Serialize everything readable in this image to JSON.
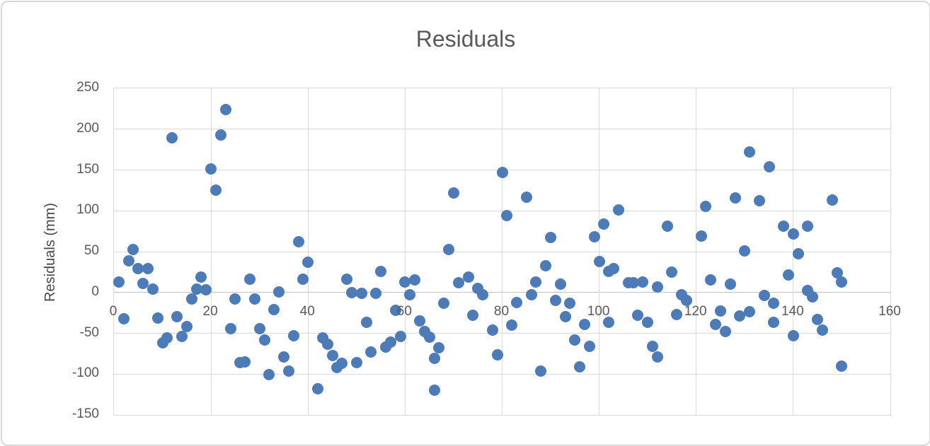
{
  "chart": {
    "title": "Residuals",
    "y_axis_title": "Residuals (mm)"
  },
  "chart_data": {
    "type": "scatter",
    "title": "Residuals",
    "xlabel": "",
    "ylabel": "Residuals (mm)",
    "xlim": [
      0,
      160
    ],
    "ylim": [
      -150,
      250
    ],
    "x_ticks": [
      0,
      20,
      40,
      60,
      80,
      100,
      120,
      140,
      160
    ],
    "y_ticks": [
      250,
      200,
      150,
      100,
      50,
      0,
      -50,
      -100,
      -150
    ],
    "grid": true,
    "legend": "none",
    "marker_color": "#4c7bb8",
    "gridline_color": "#d9d9d9",
    "text_color": "#595959",
    "points": [
      [
        1,
        13
      ],
      [
        2,
        -32
      ],
      [
        3,
        39
      ],
      [
        4,
        53
      ],
      [
        5,
        29
      ],
      [
        6,
        11
      ],
      [
        7,
        29
      ],
      [
        8,
        4
      ],
      [
        9,
        -31
      ],
      [
        10,
        -62
      ],
      [
        11,
        -56
      ],
      [
        12,
        189
      ],
      [
        13,
        -30
      ],
      [
        14,
        -54
      ],
      [
        15,
        -42
      ],
      [
        16,
        -8
      ],
      [
        17,
        4
      ],
      [
        18,
        19
      ],
      [
        19,
        3
      ],
      [
        20,
        151
      ],
      [
        21,
        125
      ],
      [
        22,
        193
      ],
      [
        23,
        224
      ],
      [
        24,
        -44
      ],
      [
        25,
        -8
      ],
      [
        26,
        -86
      ],
      [
        27,
        -85
      ],
      [
        28,
        16
      ],
      [
        29,
        -8
      ],
      [
        30,
        -44
      ],
      [
        31,
        -58
      ],
      [
        32,
        -101
      ],
      [
        33,
        -21
      ],
      [
        34,
        1
      ],
      [
        35,
        -79
      ],
      [
        36,
        -96
      ],
      [
        37,
        -53
      ],
      [
        38,
        62
      ],
      [
        39,
        16
      ],
      [
        40,
        37
      ],
      [
        42,
        -118
      ],
      [
        43,
        -56
      ],
      [
        44,
        -63
      ],
      [
        45,
        -77
      ],
      [
        46,
        -92
      ],
      [
        47,
        -87
      ],
      [
        48,
        16
      ],
      [
        49,
        0
      ],
      [
        50,
        -86
      ],
      [
        51,
        -1
      ],
      [
        52,
        -37
      ],
      [
        53,
        -73
      ],
      [
        54,
        -1
      ],
      [
        55,
        26
      ],
      [
        56,
        -67
      ],
      [
        57,
        -61
      ],
      [
        58,
        -22
      ],
      [
        59,
        -54
      ],
      [
        60,
        13
      ],
      [
        61,
        -3
      ],
      [
        62,
        15
      ],
      [
        63,
        -35
      ],
      [
        64,
        -48
      ],
      [
        65,
        -55
      ],
      [
        66,
        -120
      ],
      [
        66,
        -81
      ],
      [
        67,
        -68
      ],
      [
        68,
        -13
      ],
      [
        69,
        53
      ],
      [
        70,
        122
      ],
      [
        71,
        12
      ],
      [
        73,
        19
      ],
      [
        74,
        -28
      ],
      [
        75,
        5
      ],
      [
        76,
        -3
      ],
      [
        78,
        -46
      ],
      [
        79,
        -76
      ],
      [
        80,
        147
      ],
      [
        81,
        94
      ],
      [
        82,
        -40
      ],
      [
        83,
        -12
      ],
      [
        85,
        117
      ],
      [
        86,
        -3
      ],
      [
        87,
        13
      ],
      [
        88,
        -96
      ],
      [
        89,
        33
      ],
      [
        90,
        67
      ],
      [
        91,
        -10
      ],
      [
        92,
        10
      ],
      [
        93,
        -30
      ],
      [
        94,
        -13
      ],
      [
        95,
        -58
      ],
      [
        96,
        -91
      ],
      [
        97,
        -39
      ],
      [
        98,
        -66
      ],
      [
        99,
        68
      ],
      [
        100,
        38
      ],
      [
        101,
        84
      ],
      [
        102,
        -37
      ],
      [
        102,
        26
      ],
      [
        103,
        29
      ],
      [
        104,
        101
      ],
      [
        106,
        12
      ],
      [
        107,
        12
      ],
      [
        108,
        -28
      ],
      [
        109,
        13
      ],
      [
        110,
        -37
      ],
      [
        111,
        -66
      ],
      [
        112,
        -79
      ],
      [
        112,
        7
      ],
      [
        114,
        81
      ],
      [
        115,
        25
      ],
      [
        116,
        -27
      ],
      [
        117,
        -3
      ],
      [
        118,
        -10
      ],
      [
        121,
        69
      ],
      [
        122,
        105
      ],
      [
        123,
        15
      ],
      [
        124,
        -39
      ],
      [
        125,
        -23
      ],
      [
        126,
        -48
      ],
      [
        127,
        10
      ],
      [
        128,
        116
      ],
      [
        129,
        -29
      ],
      [
        130,
        51
      ],
      [
        131,
        -24
      ],
      [
        131,
        172
      ],
      [
        133,
        112
      ],
      [
        134,
        -4
      ],
      [
        135,
        154
      ],
      [
        136,
        -13
      ],
      [
        136,
        -37
      ],
      [
        138,
        81
      ],
      [
        139,
        21
      ],
      [
        140,
        72
      ],
      [
        140,
        -53
      ],
      [
        141,
        47
      ],
      [
        143,
        2
      ],
      [
        143,
        81
      ],
      [
        144,
        -5
      ],
      [
        145,
        -33
      ],
      [
        146,
        -46
      ],
      [
        148,
        113
      ],
      [
        149,
        24
      ],
      [
        150,
        13
      ],
      [
        150,
        -90
      ]
    ]
  }
}
